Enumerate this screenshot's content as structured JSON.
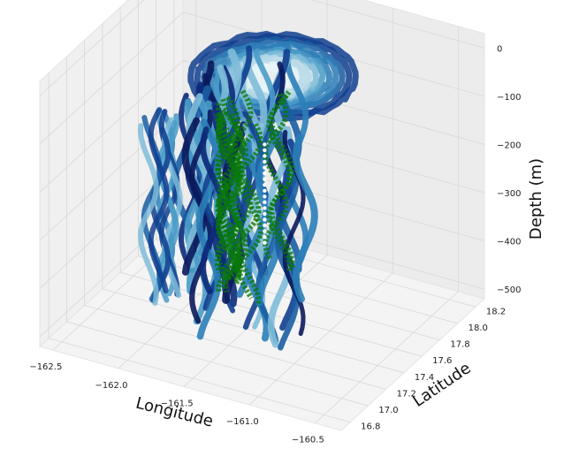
{
  "chart_data": {
    "type": "scatter",
    "projection": "3d",
    "colormap": "ocean (dark navy to white)",
    "highlight_color": "#0a7a0a",
    "grid": true,
    "xlabel": "Longitude",
    "ylabel": "Latitude",
    "zlabel": "Depth (m)",
    "xlim": [
      -162.6,
      -160.3
    ],
    "ylim": [
      16.7,
      18.3
    ],
    "zlim": [
      -520,
      30
    ],
    "x_ticks": [
      {
        "value": -162.5,
        "label": "−162.5"
      },
      {
        "value": -162.0,
        "label": "−162.0"
      },
      {
        "value": -161.5,
        "label": "−161.5"
      },
      {
        "value": -161.0,
        "label": "−161.0"
      },
      {
        "value": -160.5,
        "label": "−160.5"
      }
    ],
    "y_ticks": [
      {
        "value": 16.8,
        "label": "16.8"
      },
      {
        "value": 17.0,
        "label": "17.0"
      },
      {
        "value": 17.2,
        "label": "17.2"
      },
      {
        "value": 17.4,
        "label": "17.4"
      },
      {
        "value": 17.6,
        "label": "17.6"
      },
      {
        "value": 17.8,
        "label": "17.8"
      },
      {
        "value": 18.0,
        "label": "18.0"
      },
      {
        "value": 18.2,
        "label": "18.2"
      }
    ],
    "z_ticks": [
      {
        "value": 0,
        "label": "0"
      },
      {
        "value": -100,
        "label": "−100"
      },
      {
        "value": -200,
        "label": "−200"
      },
      {
        "value": -300,
        "label": "−300"
      },
      {
        "value": -400,
        "label": "−400"
      },
      {
        "value": -500,
        "label": "−500"
      }
    ],
    "description_data": {
      "volume_center": [
        -161.4,
        17.55
      ],
      "volume_radius": [
        0.55,
        0.45
      ],
      "depth_range": [
        -500,
        0
      ]
    }
  }
}
